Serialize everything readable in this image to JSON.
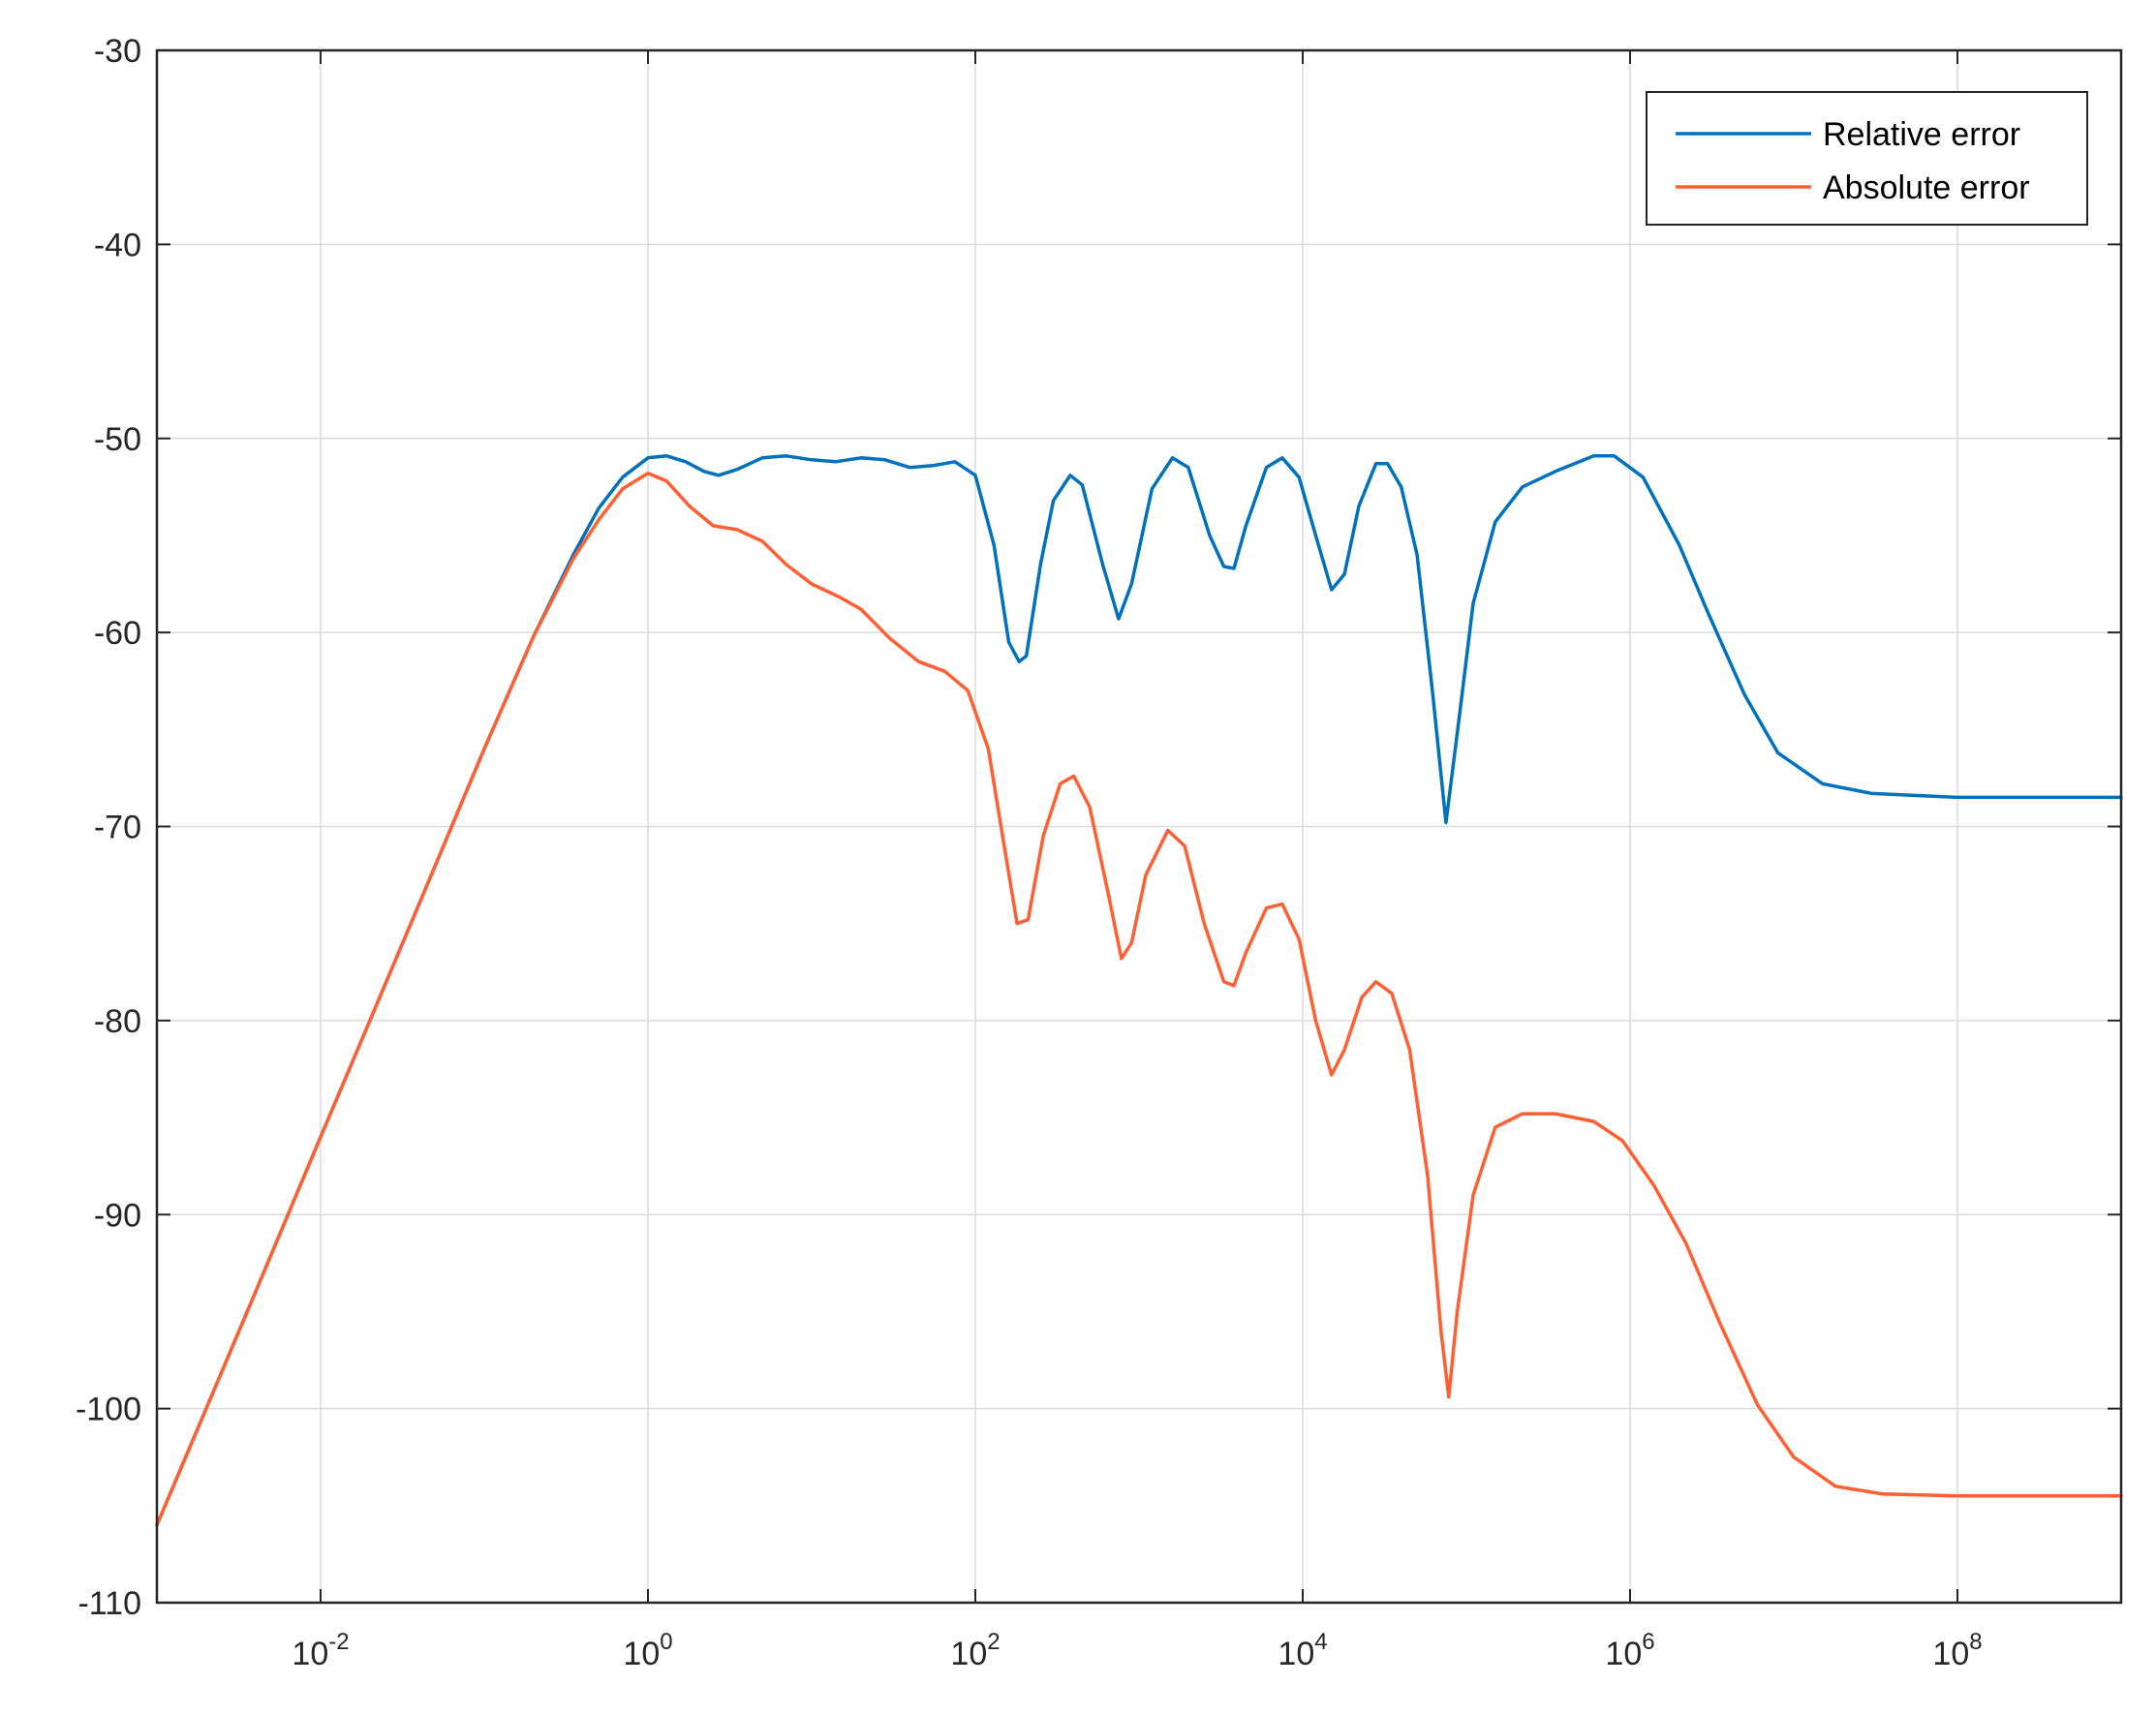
{
  "chart_data": {
    "type": "line",
    "title": "",
    "xlabel": "",
    "ylabel": "",
    "x_scale": "log",
    "xlim": [
      0.001,
      1000000000
    ],
    "ylim": [
      -110,
      -30
    ],
    "grid": true,
    "legend_position": "top-right",
    "y_ticks": [
      {
        "value": -30,
        "label": "-30"
      },
      {
        "value": -40,
        "label": "-40"
      },
      {
        "value": -50,
        "label": "-50"
      },
      {
        "value": -60,
        "label": "-60"
      },
      {
        "value": -70,
        "label": "-70"
      },
      {
        "value": -80,
        "label": "-80"
      },
      {
        "value": -90,
        "label": "-90"
      },
      {
        "value": -100,
        "label": "-100"
      },
      {
        "value": -110,
        "label": "-110"
      }
    ],
    "x_ticks": [
      {
        "value": 0.01,
        "base": "10",
        "exp": "-2"
      },
      {
        "value": 1,
        "base": "10",
        "exp": "0"
      },
      {
        "value": 100,
        "base": "10",
        "exp": "2"
      },
      {
        "value": 10000,
        "base": "10",
        "exp": "4"
      },
      {
        "value": 1000000,
        "base": "10",
        "exp": "6"
      },
      {
        "value": 100000000,
        "base": "10",
        "exp": "8"
      }
    ],
    "series": [
      {
        "name": "Relative error",
        "color": "#0072BD",
        "points": [
          [
            0.001,
            -106
          ],
          [
            0.002,
            -100
          ],
          [
            0.004,
            -94
          ],
          [
            0.01,
            -86
          ],
          [
            0.02,
            -80
          ],
          [
            0.04,
            -74
          ],
          [
            0.1,
            -66
          ],
          [
            0.2,
            -60.2
          ],
          [
            0.35,
            -56
          ],
          [
            0.5,
            -53.6
          ],
          [
            0.7,
            -52.0
          ],
          [
            1.0,
            -51.0
          ],
          [
            1.3,
            -50.9
          ],
          [
            1.7,
            -51.2
          ],
          [
            2.2,
            -51.7
          ],
          [
            2.7,
            -51.9
          ],
          [
            3.5,
            -51.6
          ],
          [
            5,
            -51.0
          ],
          [
            7,
            -50.9
          ],
          [
            10,
            -51.1
          ],
          [
            14,
            -51.2
          ],
          [
            20,
            -51.0
          ],
          [
            28,
            -51.1
          ],
          [
            40,
            -51.5
          ],
          [
            55,
            -51.4
          ],
          [
            75,
            -51.2
          ],
          [
            100,
            -51.9
          ],
          [
            130,
            -55.5
          ],
          [
            160,
            -60.5
          ],
          [
            185,
            -61.5
          ],
          [
            205,
            -61.2
          ],
          [
            250,
            -56.5
          ],
          [
            300,
            -53.2
          ],
          [
            380,
            -51.9
          ],
          [
            450,
            -52.4
          ],
          [
            600,
            -56.5
          ],
          [
            750,
            -59.3
          ],
          [
            900,
            -57.5
          ],
          [
            1200,
            -52.6
          ],
          [
            1600,
            -51.0
          ],
          [
            2000,
            -51.5
          ],
          [
            2700,
            -55.0
          ],
          [
            3300,
            -56.6
          ],
          [
            3800,
            -56.7
          ],
          [
            4500,
            -54.5
          ],
          [
            6000,
            -51.5
          ],
          [
            7500,
            -51.0
          ],
          [
            9500,
            -52.0
          ],
          [
            12000,
            -55.0
          ],
          [
            15000,
            -57.8
          ],
          [
            18000,
            -57.0
          ],
          [
            22000,
            -53.5
          ],
          [
            28000,
            -51.3
          ],
          [
            33000,
            -51.3
          ],
          [
            40000,
            -52.5
          ],
          [
            50000,
            -56.0
          ],
          [
            62000,
            -63.0
          ],
          [
            75000,
            -69.8
          ],
          [
            90000,
            -64.5
          ],
          [
            110000,
            -58.5
          ],
          [
            150000,
            -54.3
          ],
          [
            220000,
            -52.5
          ],
          [
            350000,
            -51.7
          ],
          [
            600000,
            -50.9
          ],
          [
            800000,
            -50.9
          ],
          [
            1200000,
            -52.0
          ],
          [
            2000000,
            -55.5
          ],
          [
            3000000,
            -59.0
          ],
          [
            5000000,
            -63.2
          ],
          [
            8000000,
            -66.2
          ],
          [
            15000000,
            -67.8
          ],
          [
            30000000,
            -68.3
          ],
          [
            100000000,
            -68.5
          ],
          [
            1000000000,
            -68.5
          ]
        ]
      },
      {
        "name": "Absolute error",
        "color": "#FF5F33",
        "points": [
          [
            0.001,
            -106
          ],
          [
            0.002,
            -100
          ],
          [
            0.004,
            -94
          ],
          [
            0.01,
            -86
          ],
          [
            0.02,
            -80
          ],
          [
            0.04,
            -74
          ],
          [
            0.1,
            -66
          ],
          [
            0.2,
            -60.2
          ],
          [
            0.35,
            -56.2
          ],
          [
            0.5,
            -54.2
          ],
          [
            0.7,
            -52.6
          ],
          [
            1.0,
            -51.8
          ],
          [
            1.3,
            -52.2
          ],
          [
            1.8,
            -53.5
          ],
          [
            2.5,
            -54.5
          ],
          [
            3.5,
            -54.7
          ],
          [
            5,
            -55.3
          ],
          [
            7,
            -56.5
          ],
          [
            10,
            -57.5
          ],
          [
            15,
            -58.2
          ],
          [
            20,
            -58.8
          ],
          [
            30,
            -60.3
          ],
          [
            45,
            -61.5
          ],
          [
            65,
            -62.0
          ],
          [
            90,
            -63.0
          ],
          [
            120,
            -66.0
          ],
          [
            150,
            -71.0
          ],
          [
            180,
            -75.0
          ],
          [
            210,
            -74.8
          ],
          [
            260,
            -70.5
          ],
          [
            330,
            -67.8
          ],
          [
            400,
            -67.4
          ],
          [
            500,
            -69.0
          ],
          [
            650,
            -73.5
          ],
          [
            780,
            -76.8
          ],
          [
            900,
            -76.0
          ],
          [
            1100,
            -72.5
          ],
          [
            1500,
            -70.2
          ],
          [
            1900,
            -71.0
          ],
          [
            2500,
            -75.0
          ],
          [
            3300,
            -78.0
          ],
          [
            3800,
            -78.2
          ],
          [
            4500,
            -76.5
          ],
          [
            6000,
            -74.2
          ],
          [
            7500,
            -74.0
          ],
          [
            9500,
            -75.8
          ],
          [
            12000,
            -80.0
          ],
          [
            15000,
            -82.8
          ],
          [
            18000,
            -81.5
          ],
          [
            23000,
            -78.8
          ],
          [
            28000,
            -78.0
          ],
          [
            35000,
            -78.6
          ],
          [
            45000,
            -81.5
          ],
          [
            58000,
            -88.0
          ],
          [
            70000,
            -96.0
          ],
          [
            78000,
            -99.4
          ],
          [
            88000,
            -95.0
          ],
          [
            110000,
            -89.0
          ],
          [
            150000,
            -85.5
          ],
          [
            220000,
            -84.8
          ],
          [
            350000,
            -84.8
          ],
          [
            600000,
            -85.2
          ],
          [
            900000,
            -86.2
          ],
          [
            1400000,
            -88.5
          ],
          [
            2200000,
            -91.5
          ],
          [
            3500000,
            -95.5
          ],
          [
            6000000,
            -99.8
          ],
          [
            10000000,
            -102.5
          ],
          [
            18000000,
            -104.0
          ],
          [
            35000000,
            -104.4
          ],
          [
            100000000,
            -104.5
          ],
          [
            1000000000,
            -104.5
          ]
        ]
      }
    ]
  }
}
